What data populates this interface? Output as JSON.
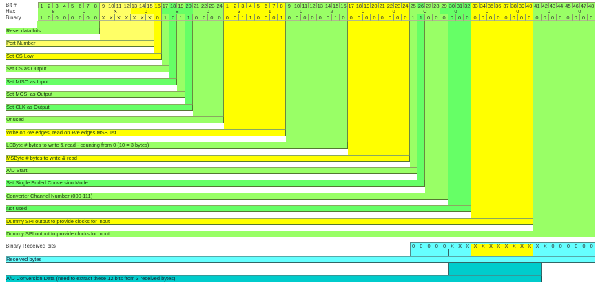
{
  "header": {
    "bit_label": "Bit #",
    "hex_label": "Hex",
    "binary_label": "Binary",
    "bit_numbers": [
      "1",
      "2",
      "3",
      "4",
      "5",
      "6",
      "7",
      "8",
      "9",
      "10",
      "11",
      "12",
      "13",
      "14",
      "15",
      "16",
      "17",
      "18",
      "19",
      "20",
      "21",
      "22",
      "23",
      "24",
      "1",
      "2",
      "3",
      "4",
      "5",
      "6",
      "7",
      "8",
      "9",
      "10",
      "11",
      "12",
      "13",
      "14",
      "15",
      "16",
      "17",
      "18",
      "19",
      "20",
      "21",
      "22",
      "23",
      "24",
      "25",
      "26",
      "27",
      "28",
      "29",
      "30",
      "31",
      "32",
      "33",
      "34",
      "35",
      "36",
      "37",
      "38",
      "39",
      "40",
      "41",
      "42",
      "43",
      "44",
      "45",
      "46",
      "47",
      "48"
    ],
    "hex_digits": [
      "8",
      "0",
      "X",
      "0",
      "B",
      "0",
      "3",
      "1",
      "0",
      "2",
      "0",
      "0",
      "C",
      "0",
      "0",
      "0",
      "0",
      "0"
    ],
    "binary": [
      "1",
      "0",
      "0",
      "0",
      "0",
      "0",
      "0",
      "0",
      "X",
      "X",
      "X",
      "X",
      "X",
      "X",
      "X",
      "0",
      "1",
      "0",
      "1",
      "1",
      "0",
      "0",
      "0",
      "0",
      "0",
      "0",
      "1",
      "1",
      "0",
      "0",
      "0",
      "1",
      "0",
      "0",
      "0",
      "0",
      "0",
      "0",
      "1",
      "0",
      "0",
      "0",
      "0",
      "0",
      "0",
      "0",
      "0",
      "0",
      "1",
      "1",
      "0",
      "0",
      "0",
      "0",
      "0",
      "0",
      "0",
      "0",
      "0",
      "0",
      "0",
      "0",
      "0",
      "0",
      "0",
      "0",
      "0",
      "0",
      "0",
      "0",
      "0",
      "0"
    ]
  },
  "colors": {
    "green": "#99ff66",
    "mid_green": "#66ff66",
    "yellow": "#ffff00",
    "pale_yellow": "#ffff66",
    "cyan": "#66ffff",
    "teal": "#00cccc"
  },
  "fields": [
    {
      "label": "Reset data bits",
      "bits": [
        1,
        8
      ],
      "color": "green"
    },
    {
      "label": "Port Number",
      "bits": [
        9,
        15
      ],
      "color": "pale_yellow"
    },
    {
      "label": "Set CS Low",
      "bits": [
        16,
        16
      ],
      "color": "yellow"
    },
    {
      "label": "Set CS as Output",
      "bits": [
        17,
        17
      ],
      "color": "green"
    },
    {
      "label": "Set MISO as Input",
      "bits": [
        18,
        18
      ],
      "color": "mid_green"
    },
    {
      "label": "Set MOSI as Output",
      "bits": [
        19,
        19
      ],
      "color": "green"
    },
    {
      "label": "Set CLK as Output",
      "bits": [
        20,
        20
      ],
      "color": "mid_green"
    },
    {
      "label": "Unused",
      "bits": [
        21,
        24
      ],
      "color": "green"
    },
    {
      "label": "Write on -ve edges, read on +ve edges MSB 1st",
      "bits": [
        25,
        32
      ],
      "color": "yellow"
    },
    {
      "label": "LSByte # bytes to write & read - counting from 0 (10 = 3 bytes)",
      "bits": [
        33,
        40
      ],
      "color": "green"
    },
    {
      "label": "MSByte # bytes to write & read",
      "bits": [
        41,
        48
      ],
      "color": "yellow"
    },
    {
      "label": "A/D Start",
      "bits": [
        49,
        49
      ],
      "color": "green"
    },
    {
      "label": "Set Single Ended Conversion Mode",
      "bits": [
        50,
        50
      ],
      "color": "mid_green"
    },
    {
      "label": "Converter Channel Number (000-111)",
      "bits": [
        51,
        53
      ],
      "color": "green"
    },
    {
      "label": "Not used",
      "bits": [
        54,
        56
      ],
      "color": "mid_green"
    },
    {
      "label": "Dummy SPI output to provide clocks for input",
      "bits": [
        57,
        64
      ],
      "color": "yellow"
    },
    {
      "label": "Dummy SPI output to provide clocks for input",
      "bits": [
        65,
        72
      ],
      "color": "green"
    }
  ],
  "received": {
    "label": "Binary Received bits",
    "bits": [
      "0",
      "0",
      "0",
      "0",
      "0",
      "X",
      "X",
      "X",
      "X",
      "X",
      "X",
      "X",
      "X",
      "X",
      "X",
      "X",
      "X",
      "X",
      "0",
      "0",
      "0",
      "0",
      "0",
      "0"
    ],
    "bytes_label": "Received bytes",
    "ad_label": "A/D Conversion Data (need to extract these 12 bits from 3 received bytes)"
  }
}
